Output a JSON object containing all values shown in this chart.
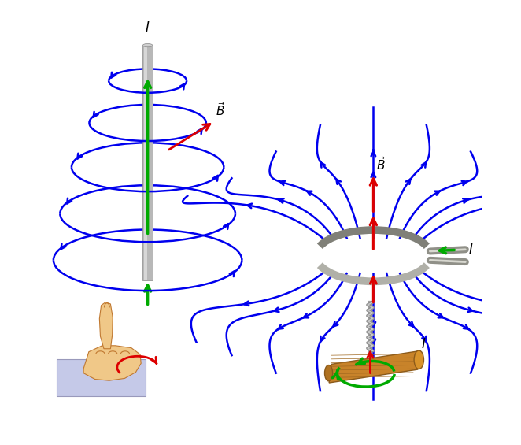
{
  "bg_color": "#ffffff",
  "blue": "#0000ee",
  "green": "#00aa00",
  "red": "#dd0000",
  "black": "#000000",
  "fig_width": 6.62,
  "fig_height": 5.65,
  "lw_field": 1.8,
  "lw_ring": 7.0
}
